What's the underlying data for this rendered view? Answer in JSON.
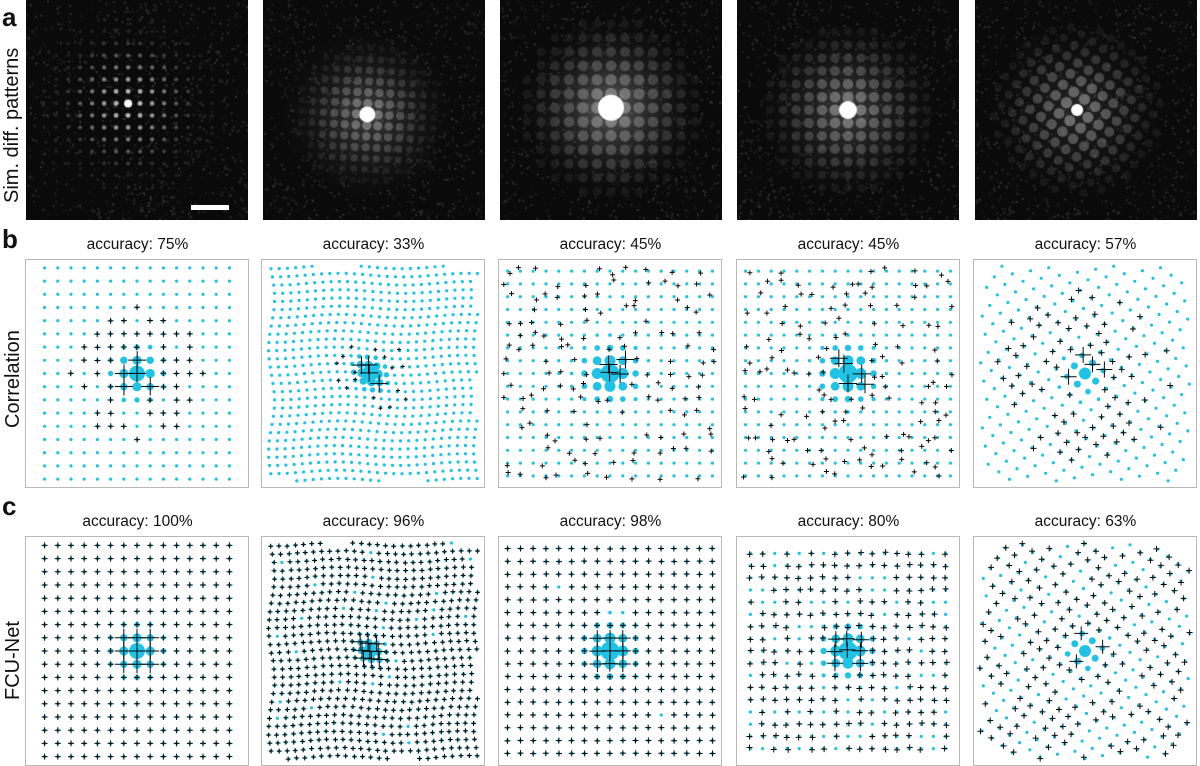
{
  "panels": {
    "a": {
      "letter": "a",
      "row_label": "Sim. diff. patterns"
    },
    "b": {
      "letter": "b",
      "row_label": "Correlation",
      "accuracies": [
        "accuracy: 75%",
        "accuracy: 33%",
        "accuracy: 45%",
        "accuracy: 45%",
        "accuracy: 57%"
      ]
    },
    "c": {
      "letter": "c",
      "row_label": "FCU-Net",
      "accuracies": [
        "accuracy: 100%",
        "accuracy: 96%",
        "accuracy: 98%",
        "accuracy: 80%",
        "accuracy: 63%"
      ]
    }
  },
  "colors": {
    "reference_disk": "#1fc3e6",
    "prediction_cross": "#0a0a0a"
  },
  "accuracy_values": {
    "correlation": [
      75,
      33,
      45,
      45,
      57
    ],
    "fcu_net": [
      100,
      96,
      98,
      80,
      63
    ]
  }
}
